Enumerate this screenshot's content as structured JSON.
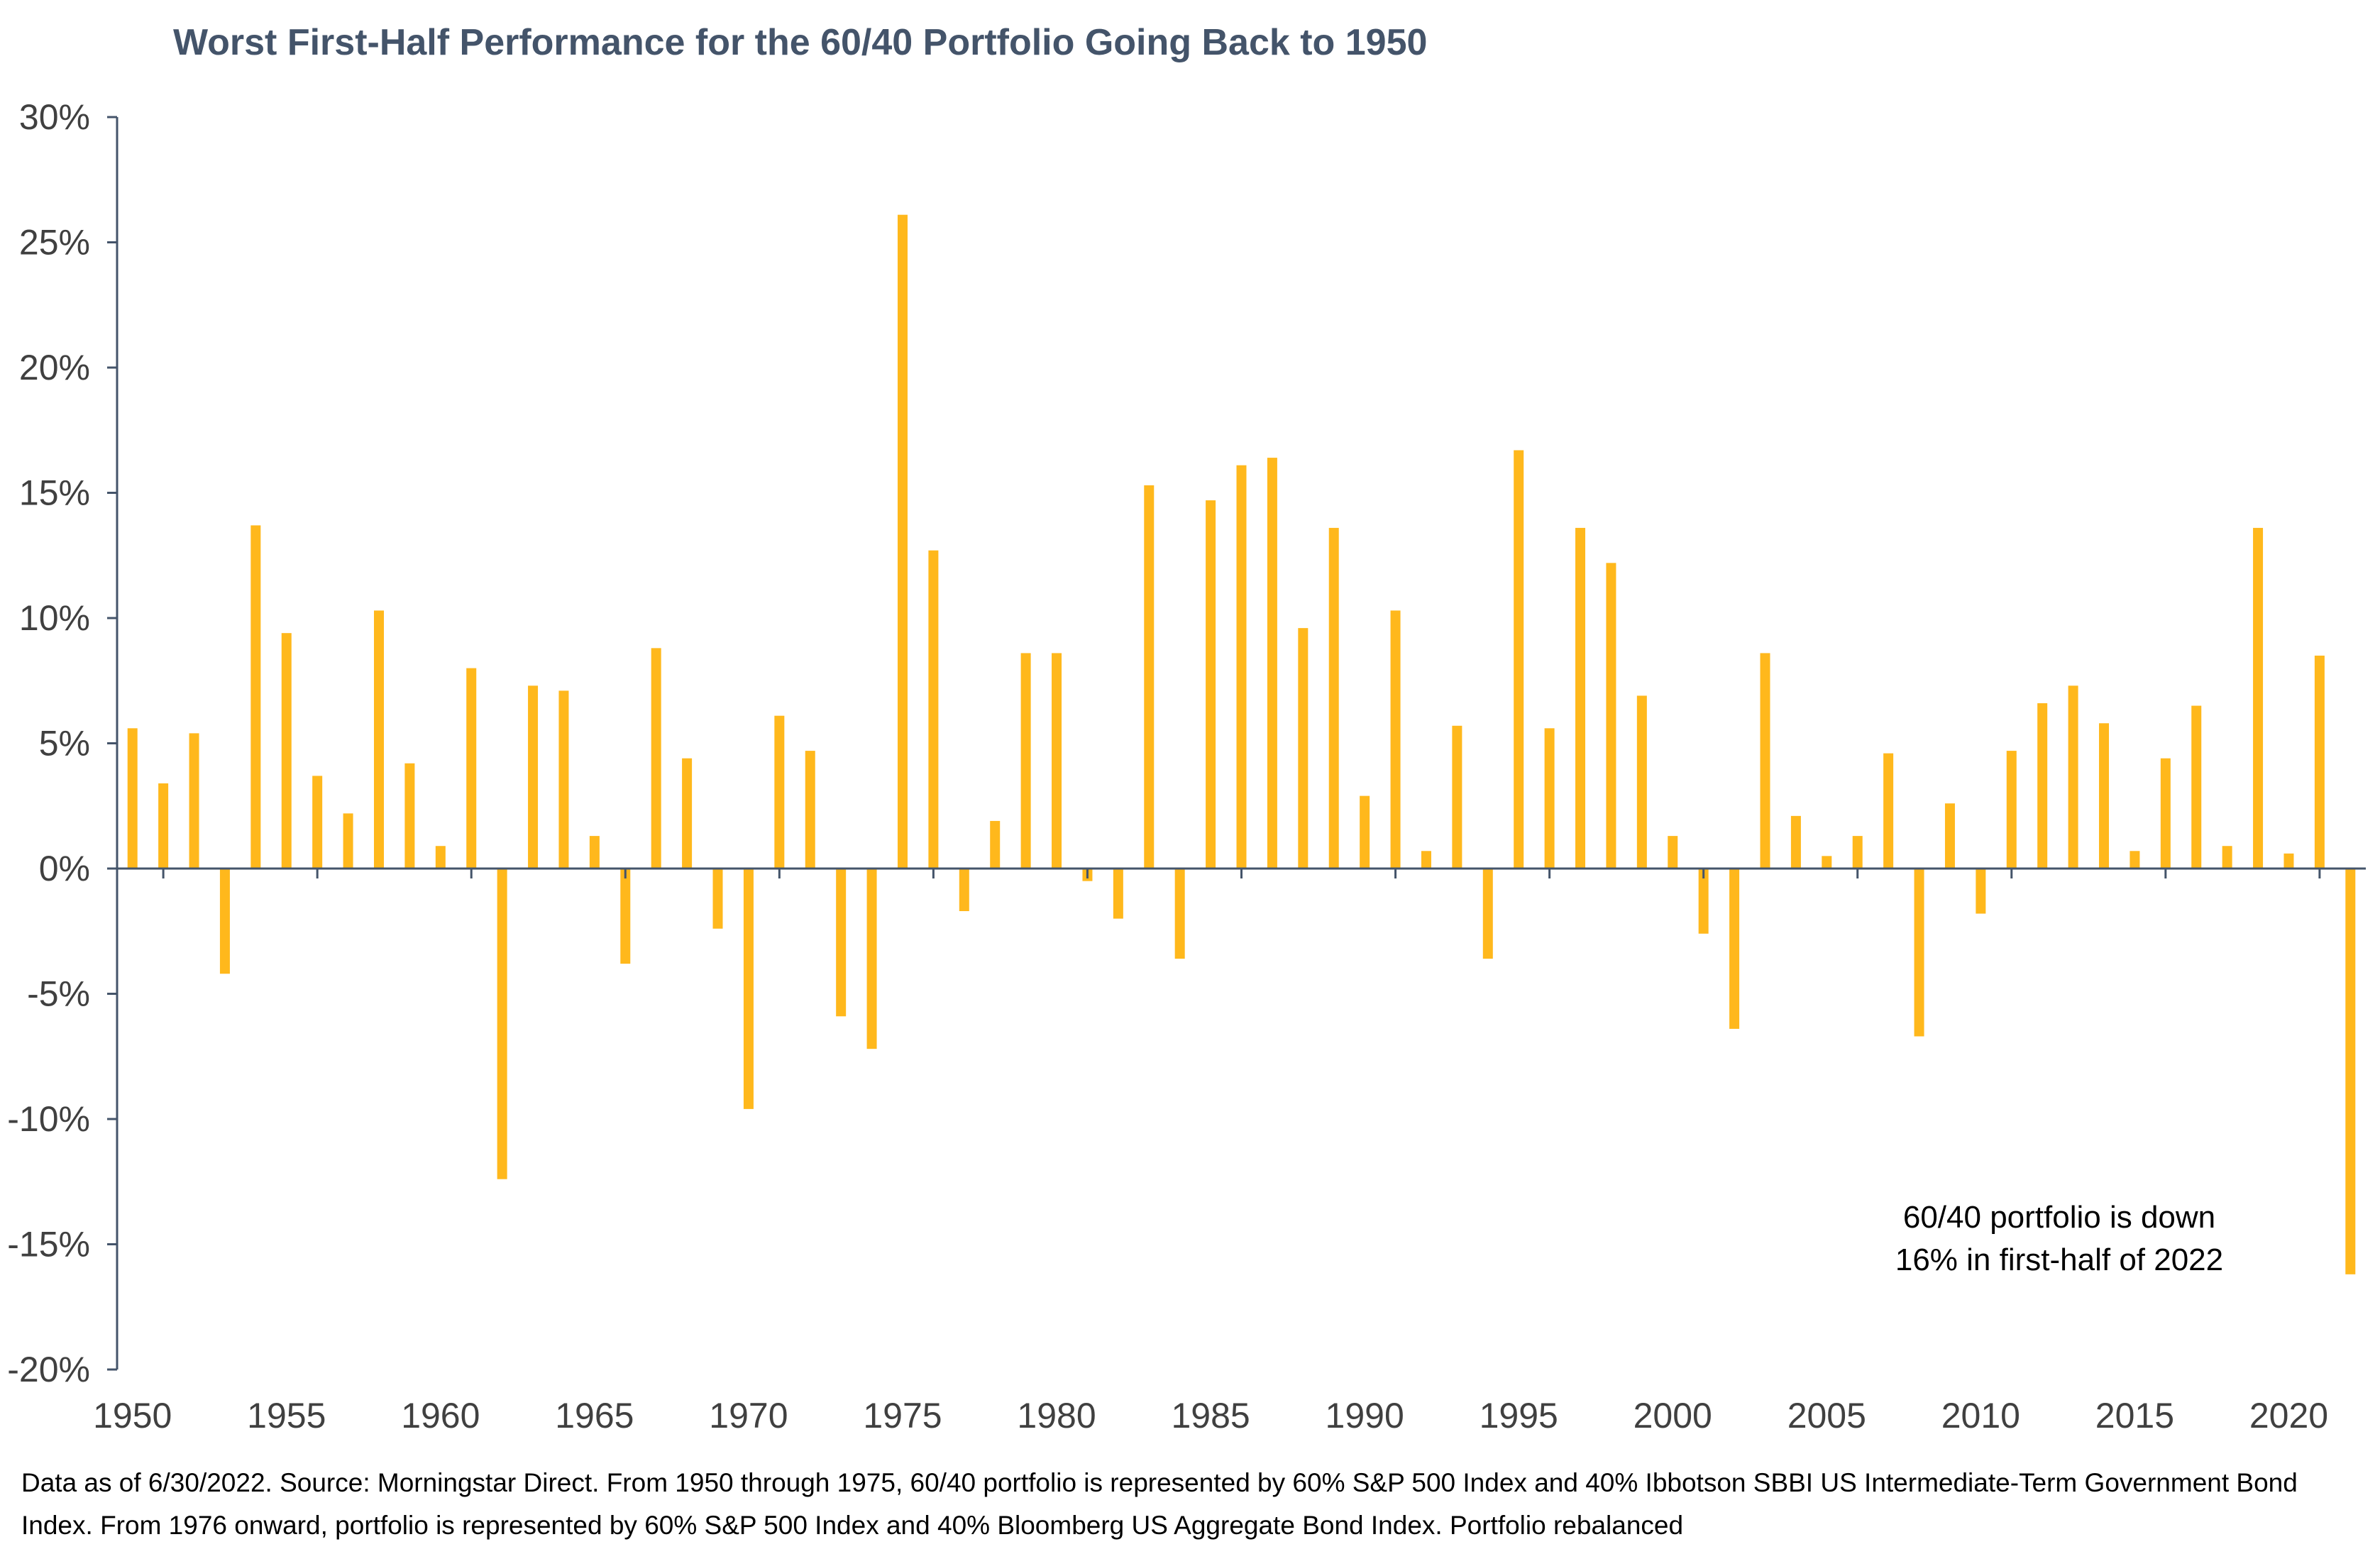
{
  "colors": {
    "bar": "#FFB81C",
    "axis": "#44546a",
    "title": "#44546a"
  },
  "annotation": {
    "line1": "60/40 portfolio is down",
    "line2": "16% in first-half of 2022"
  },
  "footnote": "Data as of 6/30/2022. Source: Morningstar Direct. From 1950 through 1975, 60/40 portfolio is represented by 60% S&P 500 Index and 40% Ibbotson SBBI US Intermediate-Term Government Bond Index. From 1976 onward, portfolio is represented by 60% S&P 500 Index and 40% Bloomberg US Aggregate Bond Index. Portfolio rebalanced",
  "chart_data": {
    "type": "bar",
    "title": "Worst First-Half Performance for the 60/40 Portfolio Going Back to 1950",
    "xlabel": "",
    "ylabel": "",
    "ylim": [
      -20,
      30
    ],
    "yticks": [
      30,
      25,
      20,
      15,
      10,
      5,
      0,
      -5,
      -10,
      -15,
      -20
    ],
    "ytick_labels": [
      "30%",
      "25%",
      "20%",
      "15%",
      "10%",
      "5%",
      "0%",
      "-5%",
      "-10%",
      "-15%",
      "-20%"
    ],
    "xticks": [
      "1950",
      "1955",
      "1960",
      "1965",
      "1970",
      "1975",
      "1980",
      "1985",
      "1990",
      "1995",
      "2000",
      "2005",
      "2010",
      "2015",
      "2020"
    ],
    "grid": false,
    "categories": [
      1950,
      1951,
      1952,
      1953,
      1954,
      1955,
      1956,
      1957,
      1958,
      1959,
      1960,
      1961,
      1962,
      1963,
      1964,
      1965,
      1966,
      1967,
      1968,
      1969,
      1970,
      1971,
      1972,
      1973,
      1974,
      1975,
      1976,
      1977,
      1978,
      1979,
      1980,
      1981,
      1982,
      1983,
      1984,
      1985,
      1986,
      1987,
      1988,
      1989,
      1990,
      1991,
      1992,
      1993,
      1994,
      1995,
      1996,
      1997,
      1998,
      1999,
      2000,
      2001,
      2002,
      2003,
      2004,
      2005,
      2006,
      2007,
      2008,
      2009,
      2010,
      2011,
      2012,
      2013,
      2014,
      2015,
      2016,
      2017,
      2018,
      2019,
      2020,
      2021,
      2022
    ],
    "values": [
      5.6,
      3.4,
      5.4,
      -4.2,
      13.7,
      9.4,
      3.7,
      2.2,
      10.3,
      4.2,
      0.9,
      8.0,
      -12.4,
      7.3,
      7.1,
      1.3,
      -3.8,
      8.8,
      4.4,
      -2.4,
      -9.6,
      6.1,
      4.7,
      -5.9,
      -7.2,
      26.1,
      12.7,
      -1.7,
      1.9,
      8.6,
      8.6,
      -0.5,
      -2.0,
      15.3,
      -3.6,
      14.7,
      16.1,
      16.4,
      9.6,
      13.6,
      2.9,
      10.3,
      0.7,
      5.7,
      -3.6,
      16.7,
      5.6,
      13.6,
      12.2,
      6.9,
      1.3,
      -2.6,
      -6.4,
      8.6,
      2.1,
      0.5,
      1.3,
      4.6,
      -6.7,
      2.6,
      -1.8,
      4.7,
      6.6,
      7.3,
      5.8,
      0.7,
      4.4,
      6.5,
      0.9,
      13.6,
      0.6,
      8.5,
      -16.2
    ]
  }
}
